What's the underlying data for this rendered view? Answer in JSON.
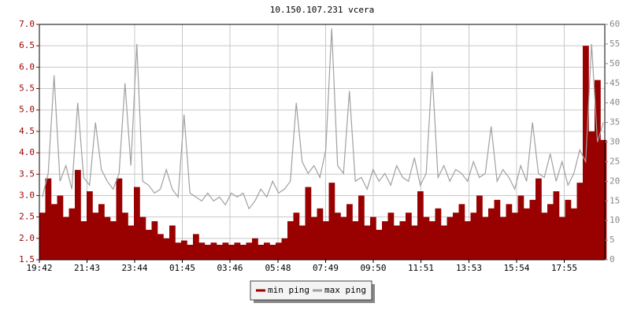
{
  "chart_data": {
    "type": "bar-line",
    "title": "10.150.107.231 vcera",
    "xlim": [
      0,
      1436
    ],
    "xticks": [
      {
        "value": 0,
        "label": "19:42"
      },
      {
        "value": 121,
        "label": "21:43"
      },
      {
        "value": 242,
        "label": "23:44"
      },
      {
        "value": 363,
        "label": "01:45"
      },
      {
        "value": 484,
        "label": "03:46"
      },
      {
        "value": 606,
        "label": "05:48"
      },
      {
        "value": 727,
        "label": "07:49"
      },
      {
        "value": 848,
        "label": "09:50"
      },
      {
        "value": 969,
        "label": "11:51"
      },
      {
        "value": 1091,
        "label": "13:53"
      },
      {
        "value": 1212,
        "label": "15:54"
      },
      {
        "value": 1333,
        "label": "17:55"
      }
    ],
    "ylim": [
      1.5,
      7
    ],
    "yticks": [
      1.5,
      {
        "value": 2,
        "label": "2.0"
      },
      2.5,
      {
        "value": 3,
        "label": "3.0"
      },
      3.5,
      {
        "value": 4,
        "label": "4.0"
      },
      4.5,
      {
        "value": 5,
        "label": "5.0"
      },
      5.5,
      {
        "value": 6,
        "label": "6.0"
      },
      6.5,
      {
        "value": 7,
        "label": "7.0"
      }
    ],
    "y2lim": [
      0,
      60
    ],
    "y2ticks": [
      0,
      5,
      10,
      15,
      20,
      25,
      30,
      35,
      40,
      45,
      50,
      55,
      60
    ],
    "grid": true,
    "x": [
      0,
      15,
      30,
      45,
      60,
      75,
      90,
      105,
      120,
      135,
      150,
      165,
      180,
      195,
      210,
      225,
      240,
      255,
      270,
      285,
      300,
      315,
      330,
      345,
      360,
      375,
      390,
      405,
      420,
      435,
      450,
      465,
      480,
      495,
      510,
      525,
      540,
      555,
      570,
      585,
      600,
      615,
      630,
      645,
      660,
      675,
      690,
      705,
      720,
      735,
      750,
      765,
      780,
      795,
      810,
      825,
      840,
      855,
      870,
      885,
      900,
      915,
      930,
      945,
      960,
      975,
      990,
      1005,
      1020,
      1035,
      1050,
      1065,
      1080,
      1095,
      1110,
      1125,
      1140,
      1155,
      1170,
      1185,
      1200,
      1215,
      1230,
      1245,
      1260,
      1275,
      1290,
      1305,
      1320,
      1335,
      1350,
      1365,
      1380,
      1395,
      1410,
      1425
    ],
    "series": [
      {
        "name": "min ping",
        "color": "#990000",
        "values": [
          2.6,
          3.4,
          2.8,
          3.0,
          2.5,
          2.7,
          3.6,
          2.4,
          3.1,
          2.6,
          2.8,
          2.5,
          2.4,
          3.4,
          2.6,
          2.3,
          3.2,
          2.5,
          2.2,
          2.4,
          2.1,
          2.0,
          2.3,
          1.9,
          1.95,
          1.85,
          2.1,
          1.9,
          1.85,
          1.9,
          1.85,
          1.9,
          1.85,
          1.9,
          1.85,
          1.9,
          2.0,
          1.85,
          1.9,
          1.85,
          1.9,
          2.0,
          2.4,
          2.6,
          2.3,
          3.2,
          2.5,
          2.7,
          2.4,
          3.3,
          2.6,
          2.5,
          2.8,
          2.4,
          3.0,
          2.3,
          2.5,
          2.2,
          2.4,
          2.6,
          2.3,
          2.4,
          2.6,
          2.3,
          3.1,
          2.5,
          2.4,
          2.7,
          2.3,
          2.5,
          2.6,
          2.8,
          2.4,
          2.6,
          3.0,
          2.5,
          2.7,
          2.9,
          2.5,
          2.8,
          2.6,
          3.0,
          2.7,
          2.9,
          3.4,
          2.6,
          2.8,
          3.1,
          2.5,
          2.9,
          2.7,
          3.3,
          6.5,
          4.5,
          5.7,
          4.3
        ]
      },
      {
        "name": "max ping",
        "color": "#a0a0a0",
        "axis": "y2",
        "values": [
          16,
          22,
          47,
          20,
          24,
          18,
          40,
          21,
          19,
          35,
          23,
          20,
          18,
          22,
          45,
          24,
          55,
          20,
          19,
          17,
          18,
          23,
          18,
          16,
          37,
          17,
          16,
          15,
          17,
          15,
          16,
          14,
          17,
          16,
          17,
          13,
          15,
          18,
          16,
          20,
          17,
          18,
          20,
          40,
          25,
          22,
          24,
          21,
          28,
          59,
          24,
          22,
          43,
          20,
          21,
          18,
          23,
          20,
          22,
          19,
          24,
          21,
          20,
          26,
          19,
          22,
          48,
          21,
          24,
          20,
          23,
          22,
          20,
          25,
          21,
          22,
          34,
          20,
          23,
          21,
          18,
          24,
          20,
          35,
          22,
          21,
          27,
          20,
          25,
          19,
          22,
          28,
          25,
          55,
          30,
          35
        ]
      }
    ]
  }
}
